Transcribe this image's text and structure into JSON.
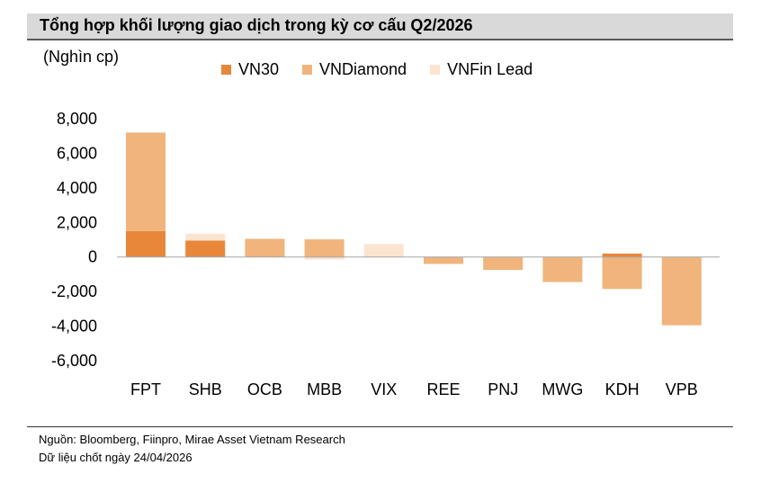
{
  "header": {
    "title": "Tổng hợp khối lượng giao dịch trong kỳ cơ cấu Q2/2026"
  },
  "chart_data": {
    "type": "bar",
    "stacked": true,
    "unit_label": "(Nghìn cp)",
    "categories": [
      "FPT",
      "SHB",
      "OCB",
      "MBB",
      "VIX",
      "REE",
      "PNJ",
      "MWG",
      "KDH",
      "VPB"
    ],
    "series": [
      {
        "name": "VN30",
        "color": "#e8873a",
        "values": [
          1500,
          950,
          0,
          0,
          0,
          0,
          0,
          0,
          200,
          0
        ]
      },
      {
        "name": "VNDiamond",
        "color": "#f0b47c",
        "values": [
          5700,
          0,
          1050,
          1020,
          0,
          -400,
          -750,
          -1450,
          -1850,
          -3950
        ]
      },
      {
        "name": "VNFin Lead",
        "color": "#fbe4d0",
        "values": [
          0,
          400,
          0,
          -150,
          750,
          0,
          0,
          0,
          0,
          0
        ]
      }
    ],
    "ylim": [
      -6000,
      8000
    ],
    "yticks": [
      "8,000",
      "6,000",
      "4,000",
      "2,000",
      "0",
      "-2,000",
      "-4,000",
      "-6,000"
    ],
    "ytick_values": [
      8000,
      6000,
      4000,
      2000,
      0,
      -2000,
      -4000,
      -6000
    ],
    "legend_position": "top",
    "grid": false
  },
  "footer": {
    "source": "Nguồn: Bloomberg, Fiinpro, Mirae Asset Vietnam Research",
    "date_note": "Dữ liệu chốt ngày 24/04/2026"
  }
}
